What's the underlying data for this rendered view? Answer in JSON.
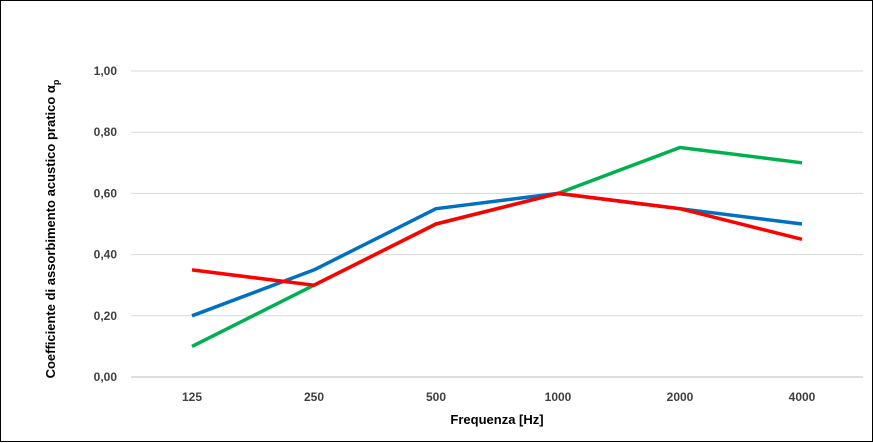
{
  "chart_data": {
    "type": "line",
    "title": "",
    "xlabel": "Frequenza [Hz]",
    "ylabel": "Coefficiente di assorbimento acustico pratico α",
    "ylabel_subscript": "p",
    "categories": [
      "125",
      "250",
      "500",
      "1000",
      "2000",
      "4000"
    ],
    "ylim": [
      0,
      1
    ],
    "yticks": [
      "0,00",
      "0,20",
      "0,40",
      "0,60",
      "0,80",
      "1,00"
    ],
    "grid": true,
    "legend": "none",
    "series": [
      {
        "color": "#00b050",
        "values": [
          0.1,
          0.3,
          0.5,
          0.6,
          0.75,
          0.7
        ]
      },
      {
        "color": "#0070c0",
        "values": [
          0.2,
          0.35,
          0.55,
          0.6,
          0.55,
          0.5
        ]
      },
      {
        "color": "#ff0000",
        "values": [
          0.35,
          0.3,
          0.5,
          0.6,
          0.55,
          0.45
        ]
      }
    ]
  }
}
